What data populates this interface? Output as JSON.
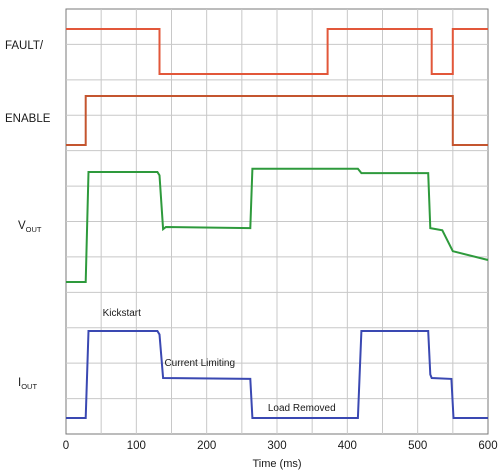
{
  "chart_data": {
    "type": "line",
    "xlabel": "Time (ms)",
    "xlim": [
      0,
      600
    ],
    "x_ticks": [
      "0",
      "100",
      "200",
      "300",
      "400",
      "500",
      "600"
    ],
    "grid": true,
    "series": [
      {
        "name": "FAULT/",
        "color": "#e2573a",
        "points": [
          [
            0,
            1
          ],
          [
            133,
            1
          ],
          [
            133,
            0
          ],
          [
            372,
            0
          ],
          [
            372,
            1
          ],
          [
            520,
            1
          ],
          [
            520,
            0
          ],
          [
            550,
            0
          ],
          [
            550,
            1
          ],
          [
            600,
            1
          ]
        ]
      },
      {
        "name": "ENABLE",
        "color": "#c4552f",
        "points": [
          [
            0,
            0
          ],
          [
            28,
            0
          ],
          [
            28,
            1
          ],
          [
            550,
            1
          ],
          [
            550,
            0
          ],
          [
            600,
            0
          ]
        ]
      },
      {
        "name": "VOUT",
        "label_main": "V",
        "label_sub": "OUT",
        "color": "#2e9a3c",
        "points": [
          [
            0,
            0
          ],
          [
            28,
            0
          ],
          [
            32,
            1
          ],
          [
            130,
            1
          ],
          [
            133,
            0.97
          ],
          [
            138,
            0.48
          ],
          [
            142,
            0.5
          ],
          [
            262,
            0.49
          ],
          [
            265,
            1.03
          ],
          [
            415,
            1.03
          ],
          [
            420,
            0.99
          ],
          [
            515,
            0.99
          ],
          [
            518,
            0.49
          ],
          [
            535,
            0.47
          ],
          [
            550,
            0.28
          ],
          [
            600,
            0.2
          ]
        ]
      },
      {
        "name": "IOUT",
        "label_main": "I",
        "label_sub": "OUT",
        "color": "#3a48b2",
        "points": [
          [
            0,
            0
          ],
          [
            28,
            0
          ],
          [
            32,
            1
          ],
          [
            130,
            1
          ],
          [
            133,
            0.96
          ],
          [
            138,
            0.46
          ],
          [
            262,
            0.45
          ],
          [
            265,
            0
          ],
          [
            415,
            0
          ],
          [
            420,
            1
          ],
          [
            515,
            1
          ],
          [
            518,
            0.5
          ],
          [
            520,
            0.46
          ],
          [
            548,
            0.45
          ],
          [
            551,
            0
          ],
          [
            600,
            0
          ]
        ]
      }
    ],
    "annotations": [
      {
        "text": "Kickstart",
        "x": 52,
        "series": "IOUT",
        "y": 1.17
      },
      {
        "text": "Current Limiting",
        "x": 140,
        "series": "IOUT",
        "y": 0.6
      },
      {
        "text": "Load Removed",
        "x": 287,
        "series": "IOUT",
        "y": 0.08
      }
    ]
  }
}
